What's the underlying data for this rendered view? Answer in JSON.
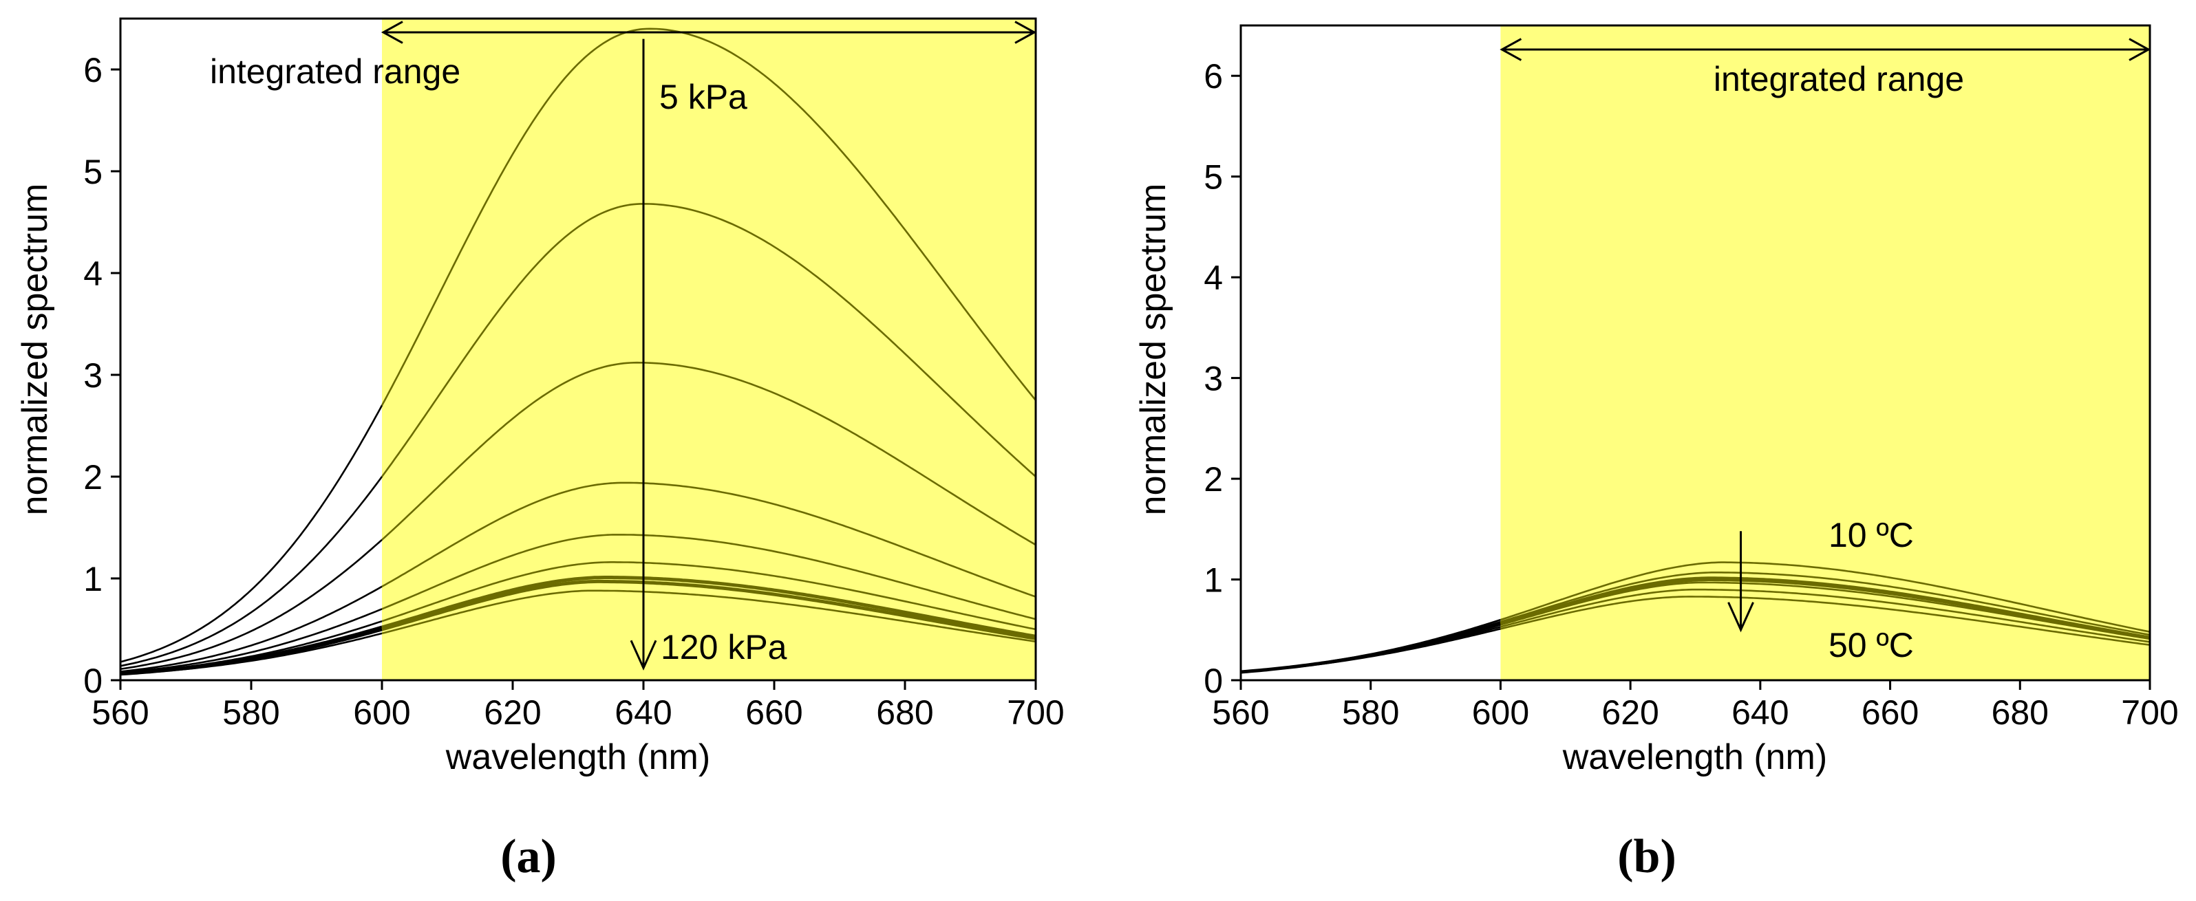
{
  "chart_data": [
    {
      "panel_label": "(a)",
      "type": "line",
      "xlabel": "wavelength (nm)",
      "ylabel": "normalized spectrum",
      "xlim": [
        560,
        700
      ],
      "ylim": [
        0,
        6.5
      ],
      "xticks": [
        560,
        580,
        600,
        620,
        640,
        660,
        680,
        700
      ],
      "yticks": [
        0,
        1,
        2,
        3,
        4,
        5,
        6
      ],
      "highlight": {
        "x_start": 600,
        "x_end": 700,
        "color": "#ffff80",
        "label": "integrated range"
      },
      "annotations": {
        "top_label": "5 kPa",
        "bottom_label": "120 kPa",
        "arrow_x": 640,
        "arrow_from": 6.3,
        "arrow_to": 0.12
      },
      "series": [
        {
          "name": "5 kPa",
          "peak_x": 641,
          "peak_y": 6.4,
          "value_560": 0.18,
          "value_600": 2.7,
          "value_700": 2.75
        },
        {
          "name": "curve 2",
          "peak_x": 640,
          "peak_y": 4.68,
          "value_560": 0.14,
          "value_600": 2.0,
          "value_700": 2.0
        },
        {
          "name": "curve 3",
          "peak_x": 639,
          "peak_y": 3.12,
          "value_560": 0.11,
          "value_600": 1.38,
          "value_700": 1.33
        },
        {
          "name": "curve 4",
          "peak_x": 637,
          "peak_y": 1.94,
          "value_560": 0.085,
          "value_600": 0.92,
          "value_700": 0.82
        },
        {
          "name": "curve 5",
          "peak_x": 636,
          "peak_y": 1.43,
          "value_560": 0.075,
          "value_600": 0.7,
          "value_700": 0.6
        },
        {
          "name": "curve 6",
          "peak_x": 635,
          "peak_y": 1.16,
          "value_560": 0.068,
          "value_600": 0.58,
          "value_700": 0.5
        },
        {
          "name": "curve 7",
          "peak_x": 634,
          "peak_y": 1.01,
          "value_560": 0.064,
          "value_600": 0.52,
          "value_700": 0.43
        },
        {
          "name": "curve 8",
          "peak_x": 633,
          "peak_y": 0.97,
          "value_560": 0.062,
          "value_600": 0.5,
          "value_700": 0.41
        },
        {
          "name": "120 kPa",
          "peak_x": 632,
          "peak_y": 0.88,
          "value_560": 0.058,
          "value_600": 0.46,
          "value_700": 0.38
        }
      ]
    },
    {
      "panel_label": "(b)",
      "type": "line",
      "xlabel": "wavelength (nm)",
      "ylabel": "normalized spectrum",
      "xlim": [
        560,
        700
      ],
      "ylim": [
        0,
        6.5
      ],
      "xticks": [
        560,
        580,
        600,
        620,
        640,
        660,
        680,
        700
      ],
      "yticks": [
        0,
        1,
        2,
        3,
        4,
        5,
        6
      ],
      "highlight": {
        "x_start": 600,
        "x_end": 700,
        "color": "#ffff80",
        "label": "integrated range"
      },
      "annotations": {
        "top_label": "10 ºC",
        "bottom_label": "50 ºC",
        "arrow_x": 637,
        "arrow_from": 1.48,
        "arrow_to": 0.5
      },
      "series": [
        {
          "name": "10 ºC",
          "peak_x": 634,
          "peak_y": 1.17,
          "value_560": 0.085,
          "value_600": 0.6,
          "value_700": 0.48
        },
        {
          "name": "curve 2",
          "peak_x": 633,
          "peak_y": 1.07,
          "value_560": 0.084,
          "value_600": 0.58,
          "value_700": 0.45
        },
        {
          "name": "curve 3",
          "peak_x": 632,
          "peak_y": 1.02,
          "value_560": 0.083,
          "value_600": 0.57,
          "value_700": 0.43
        },
        {
          "name": "curve 4",
          "peak_x": 632,
          "peak_y": 1.0,
          "value_560": 0.082,
          "value_600": 0.56,
          "value_700": 0.42
        },
        {
          "name": "curve 5",
          "peak_x": 631,
          "peak_y": 0.97,
          "value_560": 0.081,
          "value_600": 0.55,
          "value_700": 0.41
        },
        {
          "name": "curve 6",
          "peak_x": 630,
          "peak_y": 0.9,
          "value_560": 0.08,
          "value_600": 0.53,
          "value_700": 0.38
        },
        {
          "name": "50 ºC",
          "peak_x": 629,
          "peak_y": 0.83,
          "value_560": 0.079,
          "value_600": 0.51,
          "value_700": 0.35
        }
      ]
    }
  ]
}
